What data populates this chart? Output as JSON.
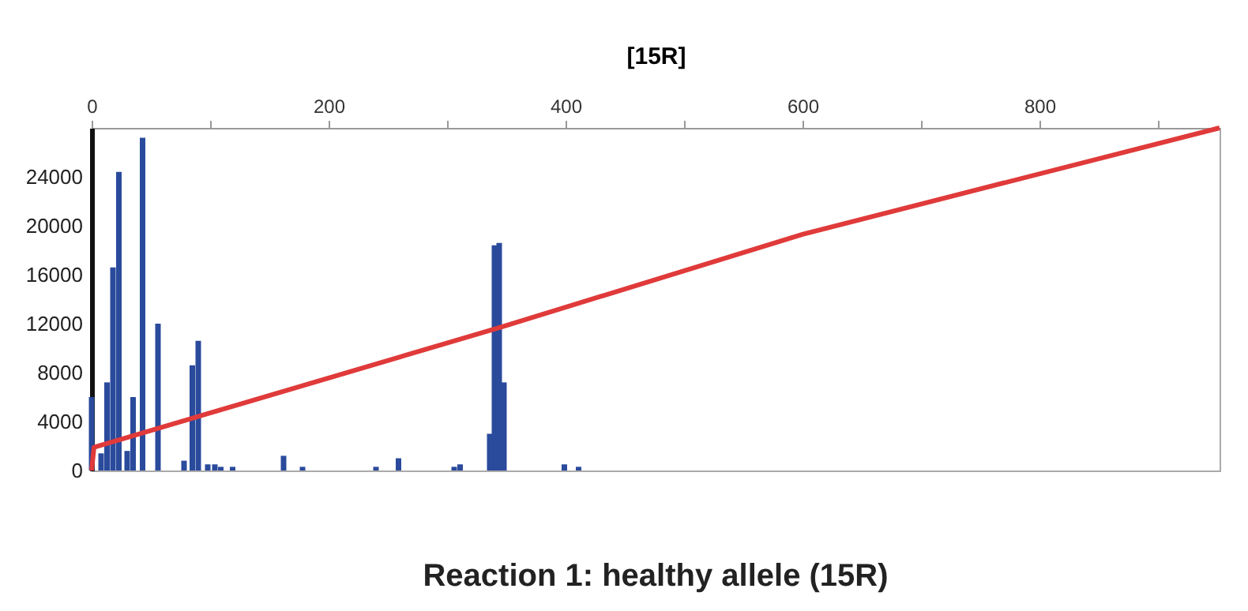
{
  "chart_data": {
    "type": "bar",
    "title": "Reaction 1: healthy allele (15R)",
    "xlabel": "[15R]",
    "xlim": [
      0,
      952
    ],
    "xticks": [
      0,
      {
        "value": 100,
        "label": null
      },
      200,
      {
        "value": 300,
        "label": null
      },
      400,
      {
        "value": 500,
        "label": null
      },
      600,
      {
        "value": 700,
        "label": null
      },
      800,
      {
        "value": 900,
        "label": null
      }
    ],
    "ylim": [
      0,
      28000
    ],
    "yticks": [
      0,
      4000,
      8000,
      12000,
      16000,
      20000,
      24000
    ],
    "series": [
      {
        "color": "#2a4a9c",
        "x": [
          0,
          8,
          13,
          18,
          23,
          30,
          35,
          43,
          56,
          78,
          85,
          90,
          98,
          104,
          109,
          119,
          162,
          178,
          240,
          259,
          306,
          311,
          336,
          340,
          344,
          348,
          399,
          411
        ],
        "values": [
          6000,
          1400,
          7200,
          16600,
          24400,
          1600,
          6000,
          27200,
          12000,
          800,
          8600,
          10600,
          500,
          500,
          300,
          300,
          1200,
          300,
          300,
          1000,
          300,
          500,
          3000,
          18400,
          18600,
          7200,
          500,
          300
        ]
      },
      {
        "type": "line",
        "color": "#e03a3a",
        "x": [
          0,
          2,
          345,
          600,
          952
        ],
        "values": [
          0,
          1900,
          11700,
          19300,
          28000
        ]
      }
    ]
  }
}
